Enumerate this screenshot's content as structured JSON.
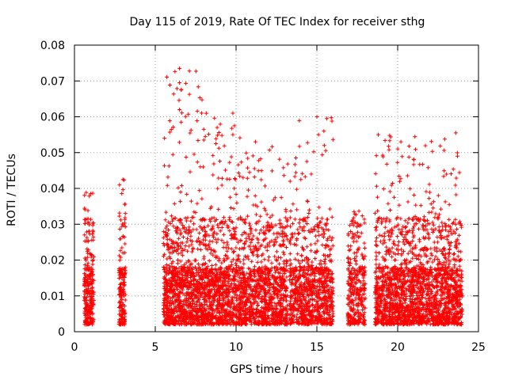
{
  "chart_data": {
    "type": "scatter",
    "title": "Day 115 of 2019, Rate Of TEC Index for receiver sthg",
    "xlabel": "GPS time / hours",
    "ylabel": "ROTI / TECUs",
    "xlim": [
      0,
      25
    ],
    "ylim": [
      0,
      0.08
    ],
    "xticks": [
      0,
      5,
      10,
      15,
      20,
      25
    ],
    "yticks": [
      0,
      0.01,
      0.02,
      0.03,
      0.04,
      0.05,
      0.06,
      0.07,
      0.08
    ],
    "xtick_labels": [
      "0",
      "5",
      "10",
      "15",
      "20",
      "25"
    ],
    "ytick_labels": [
      "0",
      "0.01",
      "0.02",
      "0.03",
      "0.04",
      "0.05",
      "0.06",
      "0.07",
      "0.08"
    ],
    "grid": true,
    "marker": "+",
    "color": "#ff0000",
    "clusters": [
      {
        "x_start": 0.6,
        "x_end": 1.2,
        "y_low": 0.002,
        "y_high": 0.039,
        "density": 260
      },
      {
        "x_start": 2.75,
        "x_end": 3.15,
        "y_low": 0.002,
        "y_high": 0.043,
        "density": 170
      },
      {
        "x_start": 5.5,
        "x_end": 8.0,
        "y_low": 0.002,
        "y_high": 0.0735,
        "density": 950
      },
      {
        "x_start": 8.0,
        "x_end": 10.5,
        "y_low": 0.002,
        "y_high": 0.061,
        "density": 900
      },
      {
        "x_start": 10.5,
        "x_end": 13.2,
        "y_low": 0.002,
        "y_high": 0.053,
        "density": 900
      },
      {
        "x_start": 13.3,
        "x_end": 16.0,
        "y_low": 0.002,
        "y_high": 0.06,
        "density": 850
      },
      {
        "x_start": 16.9,
        "x_end": 18.0,
        "y_low": 0.002,
        "y_high": 0.034,
        "density": 320
      },
      {
        "x_start": 18.6,
        "x_end": 21.5,
        "y_low": 0.002,
        "y_high": 0.055,
        "density": 1050
      },
      {
        "x_start": 21.5,
        "x_end": 24.0,
        "y_low": 0.002,
        "y_high": 0.0555,
        "density": 900
      }
    ],
    "notable_points": [
      {
        "x": 6.5,
        "y": 0.0735
      },
      {
        "x": 6.5,
        "y": 0.0695
      },
      {
        "x": 6.6,
        "y": 0.0675
      },
      {
        "x": 6.5,
        "y": 0.062
      },
      {
        "x": 6.6,
        "y": 0.0585
      },
      {
        "x": 9.8,
        "y": 0.061
      },
      {
        "x": 9.9,
        "y": 0.0575
      },
      {
        "x": 9.8,
        "y": 0.055
      },
      {
        "x": 15.0,
        "y": 0.06
      },
      {
        "x": 15.1,
        "y": 0.055
      },
      {
        "x": 8.0,
        "y": 0.0565
      },
      {
        "x": 8.1,
        "y": 0.0545
      },
      {
        "x": 11.2,
        "y": 0.053
      },
      {
        "x": 18.8,
        "y": 0.055
      },
      {
        "x": 20.2,
        "y": 0.053
      },
      {
        "x": 21.0,
        "y": 0.048
      },
      {
        "x": 23.6,
        "y": 0.0555
      },
      {
        "x": 23.7,
        "y": 0.049
      },
      {
        "x": 3.0,
        "y": 0.0425
      },
      {
        "x": 3.0,
        "y": 0.0265
      },
      {
        "x": 1.0,
        "y": 0.0385
      },
      {
        "x": 13.7,
        "y": 0.0485
      },
      {
        "x": 17.3,
        "y": 0.0335
      }
    ]
  }
}
